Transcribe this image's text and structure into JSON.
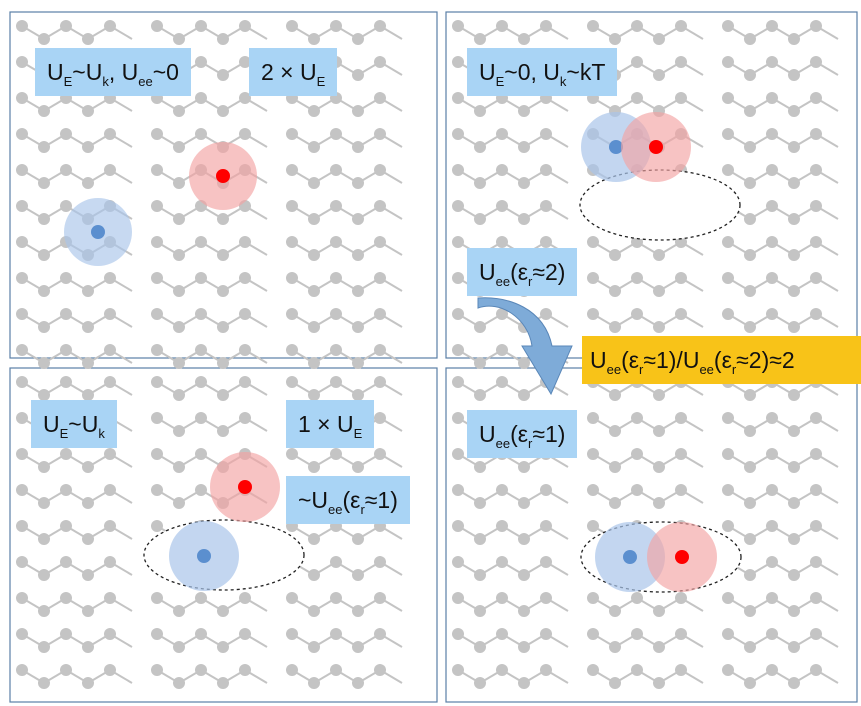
{
  "colors": {
    "label_bg": "#a9d4f5",
    "highlight_bg": "#f8c318",
    "panel_border": "#5a7fa6",
    "lattice": "#c4c4c4",
    "hole": "#ff0000",
    "hole_cloud": "#f2a3a3",
    "electron": "#5b8fcf",
    "electron_cloud": "#a9c4ea",
    "arrow": "#7eabd8"
  },
  "panels": [
    {
      "name": "top-left",
      "labels": [
        {
          "parts": [
            [
              "U",
              ""
            ],
            [
              "E",
              "s"
            ],
            [
              "~U",
              ""
            ],
            [
              "k",
              "s"
            ],
            [
              ", U",
              ""
            ],
            [
              "ee",
              "s"
            ],
            [
              "~0",
              ""
            ]
          ]
        },
        {
          "parts": [
            [
              "2 × U",
              ""
            ],
            [
              "E",
              "s"
            ]
          ]
        }
      ]
    },
    {
      "name": "top-right",
      "labels": [
        {
          "parts": [
            [
              "U",
              ""
            ],
            [
              "E",
              "s"
            ],
            [
              "~0, U",
              ""
            ],
            [
              "k",
              "s"
            ],
            [
              "~kT",
              ""
            ]
          ]
        },
        {
          "parts": [
            [
              "U",
              ""
            ],
            [
              "ee",
              "s"
            ],
            [
              "(ε",
              ""
            ],
            [
              "r",
              "s"
            ],
            [
              "≈2)",
              ""
            ]
          ]
        }
      ]
    },
    {
      "name": "bottom-left",
      "labels": [
        {
          "parts": [
            [
              "U",
              ""
            ],
            [
              "E",
              "s"
            ],
            [
              "~U",
              ""
            ],
            [
              "k",
              "s"
            ]
          ]
        },
        {
          "parts": [
            [
              "1 × U",
              ""
            ],
            [
              "E",
              "s"
            ]
          ]
        },
        {
          "parts": [
            [
              "~U",
              ""
            ],
            [
              "ee",
              "s"
            ],
            [
              "(ε",
              ""
            ],
            [
              "r",
              "s"
            ],
            [
              "≈1)",
              ""
            ]
          ]
        }
      ]
    },
    {
      "name": "bottom-right",
      "labels": [
        {
          "parts": [
            [
              "U",
              ""
            ],
            [
              "ee",
              "s"
            ],
            [
              "(ε",
              ""
            ],
            [
              "r",
              "s"
            ],
            [
              "≈1)",
              ""
            ]
          ]
        }
      ]
    }
  ],
  "ratio_label": {
    "parts": [
      [
        "U",
        ""
      ],
      [
        "ee",
        "s"
      ],
      [
        "(ε",
        ""
      ],
      [
        "r",
        "s"
      ],
      [
        "≈1)/U",
        ""
      ],
      [
        "ee",
        "s"
      ],
      [
        "(ε",
        ""
      ],
      [
        "r",
        "s"
      ],
      [
        "≈2)≈2",
        ""
      ]
    ]
  }
}
